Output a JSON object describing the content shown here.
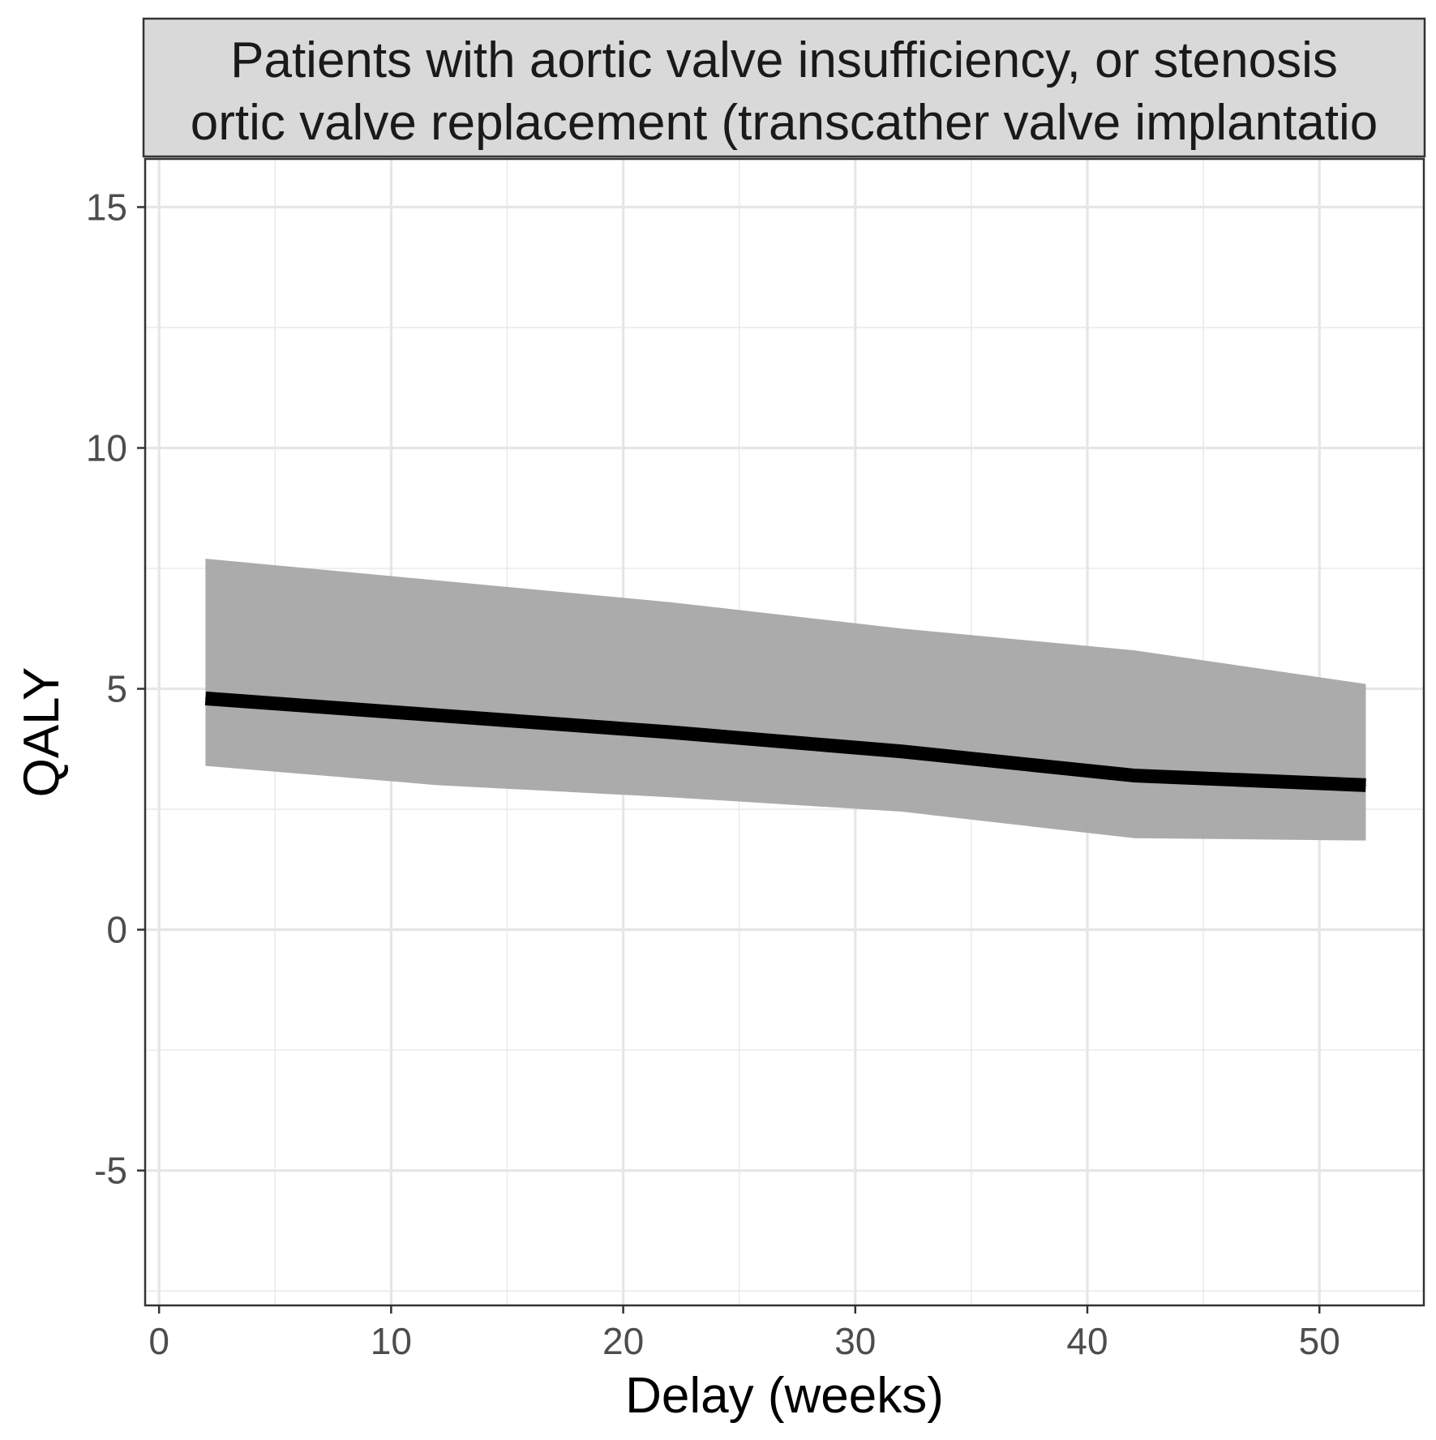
{
  "chart_data": {
    "type": "line",
    "panel_title_lines": [
      "Patients with aortic valve insufficiency, or stenosis",
      "ortic valve replacement (transcather valve implantatio"
    ],
    "xlabel": "Delay (weeks)",
    "ylabel": "QALY",
    "xlim": [
      -0.6,
      54.5
    ],
    "ylim": [
      -7.8,
      16.0
    ],
    "x_ticks": [
      0,
      10,
      20,
      30,
      40,
      50
    ],
    "y_ticks": [
      -5,
      0,
      5,
      10,
      15
    ],
    "x_tick_labels": [
      "0",
      "10",
      "20",
      "30",
      "40",
      "50"
    ],
    "y_tick_labels": [
      "-5",
      "0",
      "5",
      "10",
      "15"
    ],
    "x_minor": [
      5,
      15,
      25,
      35,
      45
    ],
    "y_minor": [
      -7.5,
      -2.5,
      2.5,
      7.5,
      12.5
    ],
    "grid": true,
    "series": [
      {
        "x": [
          2,
          12,
          22,
          32,
          42,
          52
        ],
        "y": [
          4.8,
          4.45,
          4.1,
          3.7,
          3.2,
          3.0
        ],
        "ribbon_lower": [
          3.4,
          3.0,
          2.75,
          2.45,
          1.9,
          1.85
        ],
        "ribbon_upper": [
          7.7,
          7.25,
          6.8,
          6.25,
          5.8,
          5.1
        ],
        "color": "#000000",
        "ribbon_color": "#a6a6a6"
      }
    ]
  }
}
